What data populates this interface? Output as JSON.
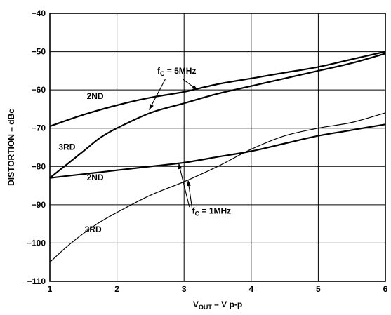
{
  "chart_data": {
    "type": "line",
    "title": "",
    "xlabel": "V_OUT – V p-p",
    "xlabel_main": "V",
    "xlabel_sub": "OUT",
    "xlabel_rest": " – V p-p",
    "ylabel": "DISTORTION – dBc",
    "xlim": [
      1,
      6
    ],
    "ylim": [
      -110,
      -40
    ],
    "x_ticks": [
      1,
      2,
      3,
      4,
      5,
      6
    ],
    "y_ticks": [
      -40,
      -50,
      -60,
      -70,
      -80,
      -90,
      -100,
      -110
    ],
    "grid": true,
    "series": [
      {
        "name": "2ND",
        "group": "fC = 5MHz",
        "style": "thick",
        "x": [
          1,
          1.5,
          2,
          2.5,
          3,
          3.5,
          4,
          4.5,
          5,
          5.5,
          6
        ],
        "y": [
          -69.5,
          -66.5,
          -64,
          -62,
          -60.5,
          -58.5,
          -57,
          -55.5,
          -54,
          -52,
          -50
        ]
      },
      {
        "name": "3RD",
        "group": "fC = 5MHz",
        "style": "thick",
        "x": [
          1,
          1.25,
          1.5,
          1.75,
          2,
          2.5,
          3,
          3.5,
          4,
          4.5,
          5,
          5.5,
          6
        ],
        "y": [
          -83,
          -79.5,
          -76,
          -72.5,
          -70,
          -66,
          -63.5,
          -61,
          -59,
          -57,
          -55,
          -53,
          -50.5
        ]
      },
      {
        "name": "2ND",
        "group": "fC = 1MHz",
        "style": "thick",
        "x": [
          1,
          1.5,
          2,
          2.5,
          3,
          3.5,
          4,
          4.5,
          5,
          5.5,
          6
        ],
        "y": [
          -83,
          -82,
          -81,
          -80,
          -79,
          -77.5,
          -76,
          -74,
          -72,
          -70.5,
          -69
        ]
      },
      {
        "name": "3RD",
        "group": "fC = 1MHz",
        "style": "thin",
        "x": [
          1,
          1.25,
          1.5,
          1.75,
          2,
          2.5,
          3,
          3.5,
          4,
          4.5,
          5,
          5.5,
          6
        ],
        "y": [
          -105,
          -101,
          -97.5,
          -94.5,
          -92,
          -87.5,
          -84,
          -80,
          -75.5,
          -72,
          -70,
          -68.5,
          -66
        ]
      }
    ],
    "annotations": {
      "fc5_main": "f",
      "fc5_sub": "C",
      "fc5_rest": " = 5MHz",
      "fc1_main": "f",
      "fc1_sub": "C",
      "fc1_rest": " = 1MHz",
      "label_2nd_5": "2ND",
      "label_3rd_5": "3RD",
      "label_2nd_1": "2ND",
      "label_3rd_1": "3RD"
    }
  }
}
